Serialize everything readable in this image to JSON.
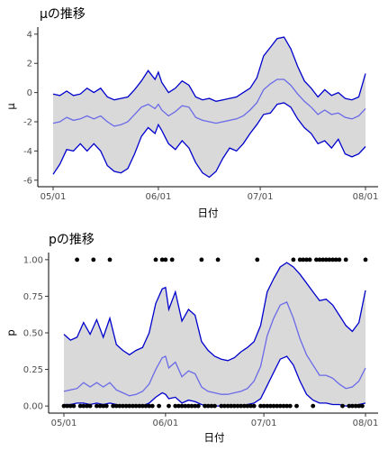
{
  "chart_data": [
    {
      "type": "area",
      "title": "μの推移",
      "xlabel": "日付",
      "ylabel": "μ",
      "x_ticks": [
        "05/01",
        "06/01",
        "07/01",
        "08/01"
      ],
      "y_ticks": [
        "-6",
        "-4",
        "-2",
        "0",
        "2",
        "4"
      ],
      "xlim": [
        0,
        93
      ],
      "ylim": [
        -6.2,
        4.3
      ],
      "grid": false,
      "x": [
        0,
        2,
        4,
        6,
        8,
        10,
        12,
        14,
        16,
        18,
        20,
        22,
        24,
        26,
        28,
        30,
        31,
        32,
        34,
        36,
        38,
        40,
        42,
        44,
        46,
        48,
        50,
        52,
        54,
        56,
        58,
        60,
        62,
        64,
        66,
        68,
        70,
        72,
        74,
        76,
        78,
        80,
        82,
        84,
        86,
        88,
        90,
        92
      ],
      "upper": [
        -0.1,
        -0.2,
        0.1,
        -0.2,
        -0.1,
        0.3,
        0.0,
        0.3,
        -0.3,
        -0.5,
        -0.4,
        -0.3,
        0.2,
        0.8,
        1.5,
        0.9,
        1.4,
        0.7,
        0.0,
        0.3,
        0.8,
        0.5,
        -0.3,
        -0.5,
        -0.4,
        -0.6,
        -0.5,
        -0.4,
        -0.3,
        0.0,
        0.3,
        1.0,
        2.5,
        3.1,
        3.7,
        3.8,
        3.0,
        1.8,
        0.8,
        0.3,
        -0.3,
        0.2,
        -0.2,
        0.0,
        -0.4,
        -0.5,
        -0.3,
        1.3
      ],
      "median": [
        -2.1,
        -2.0,
        -1.7,
        -1.9,
        -1.8,
        -1.6,
        -1.8,
        -1.6,
        -2.0,
        -2.3,
        -2.2,
        -2.0,
        -1.5,
        -1.0,
        -0.8,
        -1.1,
        -0.8,
        -1.2,
        -1.6,
        -1.3,
        -0.9,
        -1.0,
        -1.7,
        -1.9,
        -2.0,
        -2.1,
        -2.0,
        -1.9,
        -1.8,
        -1.6,
        -1.2,
        -0.7,
        0.2,
        0.6,
        0.9,
        0.9,
        0.5,
        -0.1,
        -0.6,
        -1.0,
        -1.5,
        -1.2,
        -1.5,
        -1.4,
        -1.7,
        -1.8,
        -1.6,
        -1.1
      ],
      "lower": [
        -5.6,
        -4.9,
        -3.9,
        -4.0,
        -3.5,
        -4.0,
        -3.5,
        -4.0,
        -5.0,
        -5.4,
        -5.5,
        -5.2,
        -4.2,
        -3.0,
        -2.4,
        -2.8,
        -2.2,
        -2.6,
        -3.5,
        -3.9,
        -3.3,
        -3.8,
        -4.8,
        -5.5,
        -5.8,
        -5.4,
        -4.5,
        -3.8,
        -4.0,
        -3.5,
        -2.8,
        -2.2,
        -1.5,
        -1.4,
        -0.8,
        -0.7,
        -1.0,
        -1.8,
        -2.4,
        -2.8,
        -3.5,
        -3.3,
        -3.8,
        -3.2,
        -4.2,
        -4.4,
        -4.2,
        -3.7
      ]
    },
    {
      "type": "area",
      "title": "pの推移",
      "xlabel": "日付",
      "ylabel": "p",
      "x_ticks": [
        "05/01",
        "06/01",
        "07/01",
        "08/01"
      ],
      "y_ticks": [
        "0.00",
        "0.25",
        "0.50",
        "0.75",
        "1.00"
      ],
      "xlim": [
        0,
        93
      ],
      "ylim": [
        -0.03,
        1.03
      ],
      "grid": false,
      "x": [
        0,
        2,
        4,
        6,
        8,
        10,
        12,
        14,
        16,
        18,
        20,
        22,
        24,
        26,
        28,
        30,
        31,
        32,
        34,
        36,
        38,
        40,
        42,
        44,
        46,
        48,
        50,
        52,
        54,
        56,
        58,
        60,
        62,
        64,
        66,
        68,
        70,
        72,
        74,
        76,
        78,
        80,
        82,
        84,
        86,
        88,
        90,
        92
      ],
      "upper": [
        0.49,
        0.45,
        0.47,
        0.57,
        0.49,
        0.59,
        0.47,
        0.6,
        0.42,
        0.38,
        0.35,
        0.38,
        0.4,
        0.5,
        0.7,
        0.8,
        0.81,
        0.66,
        0.78,
        0.58,
        0.66,
        0.62,
        0.44,
        0.38,
        0.34,
        0.32,
        0.31,
        0.33,
        0.37,
        0.4,
        0.44,
        0.55,
        0.78,
        0.87,
        0.95,
        0.98,
        0.95,
        0.9,
        0.84,
        0.78,
        0.72,
        0.73,
        0.69,
        0.62,
        0.55,
        0.51,
        0.57,
        0.79
      ],
      "median": [
        0.1,
        0.11,
        0.12,
        0.16,
        0.13,
        0.16,
        0.13,
        0.16,
        0.11,
        0.09,
        0.07,
        0.08,
        0.1,
        0.15,
        0.25,
        0.33,
        0.34,
        0.26,
        0.3,
        0.2,
        0.24,
        0.22,
        0.13,
        0.1,
        0.09,
        0.08,
        0.08,
        0.09,
        0.1,
        0.12,
        0.17,
        0.27,
        0.48,
        0.6,
        0.69,
        0.71,
        0.6,
        0.46,
        0.35,
        0.28,
        0.21,
        0.21,
        0.19,
        0.15,
        0.12,
        0.13,
        0.17,
        0.26
      ],
      "lower": [
        0.01,
        0.01,
        0.02,
        0.02,
        0.01,
        0.02,
        0.01,
        0.02,
        0.01,
        0.0,
        0.0,
        0.0,
        0.0,
        0.02,
        0.06,
        0.09,
        0.08,
        0.05,
        0.06,
        0.02,
        0.04,
        0.03,
        0.01,
        0.0,
        0.0,
        0.0,
        0.0,
        0.0,
        0.0,
        0.01,
        0.02,
        0.05,
        0.14,
        0.23,
        0.32,
        0.34,
        0.28,
        0.17,
        0.08,
        0.04,
        0.02,
        0.02,
        0.01,
        0.01,
        0.0,
        0.0,
        0.01,
        0.02
      ],
      "observations": {
        "x": [
          0,
          1,
          2,
          3,
          4,
          5,
          6,
          7,
          8,
          9,
          10,
          11,
          12,
          13,
          14,
          15,
          16,
          17,
          18,
          19,
          20,
          21,
          22,
          23,
          24,
          25,
          26,
          27,
          28,
          29,
          30,
          31,
          32,
          33,
          34,
          35,
          36,
          37,
          38,
          39,
          40,
          41,
          42,
          43,
          44,
          45,
          46,
          47,
          48,
          49,
          50,
          51,
          52,
          53,
          54,
          55,
          56,
          57,
          58,
          59,
          60,
          61,
          62,
          63,
          64,
          65,
          66,
          67,
          68,
          69,
          70,
          71,
          72,
          73,
          74,
          75,
          76,
          77,
          78,
          79,
          80,
          81,
          82,
          83,
          84,
          85,
          86,
          87,
          88,
          89,
          90,
          91,
          92
        ],
        "y": [
          0,
          0,
          0,
          0,
          1,
          0,
          0,
          0,
          0,
          1,
          0,
          0,
          0,
          0,
          1,
          0,
          0,
          0,
          0,
          0,
          0,
          0,
          0,
          0,
          0,
          0,
          0,
          0,
          1,
          0,
          1,
          1,
          0,
          1,
          0,
          0,
          0,
          0,
          0,
          0,
          0,
          0,
          1,
          0,
          0,
          0,
          0,
          1,
          0,
          0,
          0,
          0,
          0,
          0,
          0,
          0,
          0,
          0,
          0,
          1,
          0,
          0,
          0,
          0,
          0,
          0,
          0,
          0,
          0,
          0,
          1,
          0,
          1,
          1,
          1,
          1,
          0,
          1,
          1,
          1,
          1,
          1,
          1,
          1,
          1,
          0,
          1,
          0,
          0,
          0,
          0,
          0,
          1
        ]
      }
    }
  ]
}
